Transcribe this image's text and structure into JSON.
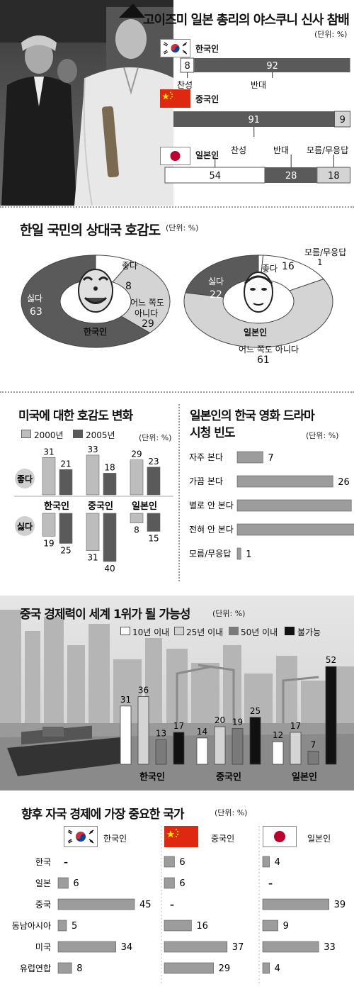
{
  "colors": {
    "dark": "#5a5a5a",
    "mid": "#9c9c9c",
    "light": "#d4d4d4",
    "white": "#ffffff",
    "black": "#111111",
    "korea_red": "#cd2e3a",
    "korea_blue": "#0047a0",
    "china_red": "#de2910",
    "china_yellow": "#ffde00",
    "japan_red": "#bc002d"
  },
  "sections": {
    "yasukuni": {
      "title": "고이즈미 일본 총리의 야스쿠니 신사 참배",
      "unit": "(단위: %)"
    },
    "favorability": {
      "title": "한일 국민의 상대국 호감도",
      "unit": "(단위: %)"
    },
    "us_favor": {
      "title": "미국에 대한 호감도 변화",
      "unit": "(단위: %)",
      "legend_2000": "2000년",
      "legend_2005": "2005년",
      "row_like": "좋다",
      "row_dislike": "싫다"
    },
    "drama": {
      "title_line1": "일본인의 한국 영화 드라마",
      "title_line2": "시청 빈도",
      "unit": "(단위: %)"
    },
    "china_econ": {
      "title": "중국 경제력이 세계 1위가 될 가능성",
      "unit": "(단위: %)"
    },
    "important": {
      "title": "향후 자국 경제에 가장 중요한 국가",
      "unit": "(단위: %)"
    }
  },
  "chart_data": [
    {
      "id": "yasukuni",
      "type": "bar",
      "stacked": true,
      "orientation": "horizontal",
      "groups": [
        {
          "name": "한국인",
          "segments": [
            {
              "label": "찬성",
              "value": 8
            },
            {
              "label": "반대",
              "value": 92
            }
          ]
        },
        {
          "name": "중국인",
          "segments": [
            {
              "label": "반대",
              "value": 91
            },
            {
              "label": "",
              "value": 9
            }
          ]
        },
        {
          "name": "일본인",
          "segments": [
            {
              "label": "찬성",
              "value": 54
            },
            {
              "label": "반대",
              "value": 28
            },
            {
              "label": "모름/무응답",
              "value": 18
            }
          ]
        }
      ]
    },
    {
      "id": "favorability",
      "type": "pie",
      "donut": true,
      "charts": [
        {
          "center_label": "한국인",
          "slices": [
            {
              "label": "좋다",
              "value": 8
            },
            {
              "label": "어느 쪽도 아니다",
              "value": 29
            },
            {
              "label": "싫다",
              "value": 63
            }
          ]
        },
        {
          "center_label": "일본인",
          "slices": [
            {
              "label": "모름/무응답",
              "value": 1
            },
            {
              "label": "좋다",
              "value": 16
            },
            {
              "label": "어느 쪽도 아니다",
              "value": 61
            },
            {
              "label": "싫다",
              "value": 22
            }
          ]
        }
      ]
    },
    {
      "id": "us_favor",
      "type": "bar",
      "categories": [
        "한국인",
        "중국인",
        "일본인"
      ],
      "like": {
        "label": "좋다",
        "series": [
          {
            "name": "2000년",
            "values": [
              31,
              33,
              29
            ]
          },
          {
            "name": "2005년",
            "values": [
              21,
              18,
              23
            ]
          }
        ]
      },
      "dislike": {
        "label": "싫다",
        "series": [
          {
            "name": "2000년",
            "values": [
              19,
              31,
              8
            ]
          },
          {
            "name": "2005년",
            "values": [
              25,
              40,
              15
            ]
          }
        ]
      }
    },
    {
      "id": "drama",
      "type": "bar",
      "orientation": "horizontal",
      "categories": [
        "자주 본다",
        "가끔 본다",
        "별로 안 본다",
        "전혀 안 본다",
        "모름/무응답"
      ],
      "values": [
        7,
        26,
        31,
        35,
        1
      ]
    },
    {
      "id": "china_econ",
      "type": "bar",
      "categories": [
        "한국인",
        "중국인",
        "일본인"
      ],
      "series": [
        {
          "name": "10년 이내",
          "values": [
            31,
            14,
            12
          ]
        },
        {
          "name": "25년 이내",
          "values": [
            36,
            20,
            17
          ]
        },
        {
          "name": "50년 이내",
          "values": [
            13,
            19,
            7
          ]
        },
        {
          "name": "불가능",
          "values": [
            17,
            25,
            52
          ]
        }
      ]
    },
    {
      "id": "important",
      "type": "bar",
      "orientation": "horizontal",
      "categories": [
        "한국",
        "일본",
        "중국",
        "동남아시아",
        "미국",
        "유럽연합"
      ],
      "panels": [
        {
          "name": "한국인",
          "values": [
            null,
            6,
            45,
            5,
            34,
            8
          ]
        },
        {
          "name": "중국인",
          "values": [
            6,
            6,
            null,
            16,
            37,
            29
          ]
        },
        {
          "name": "일본인",
          "values": [
            4,
            null,
            39,
            9,
            33,
            4
          ]
        }
      ],
      "missing_mark": "–"
    }
  ]
}
